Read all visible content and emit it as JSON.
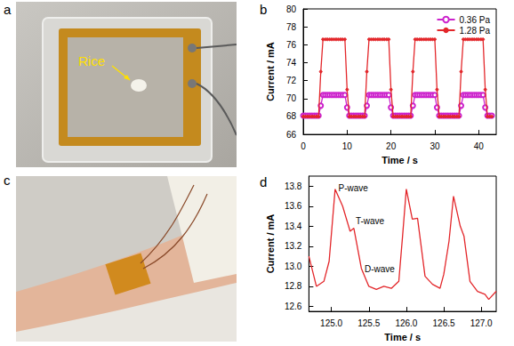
{
  "panel_labels": [
    "a",
    "b",
    "c",
    "d"
  ],
  "photo_annotation": "Rice",
  "chart_data": [
    {
      "type": "line",
      "xlabel": "Time / s",
      "ylabel": "Current / mA",
      "x": [
        0,
        0.5,
        1,
        1.5,
        2,
        2.5,
        3,
        3.5,
        4,
        4.5,
        5,
        5.5,
        6,
        6.5,
        7,
        7.5,
        8,
        8.5,
        9,
        9.5,
        10,
        10.5,
        11,
        11.5,
        12,
        12.5,
        13,
        13.5,
        14,
        14.5,
        15,
        15.5,
        16,
        16.5,
        17,
        17.5,
        18,
        18.5,
        19,
        19.5,
        20,
        20.5,
        21,
        21.5,
        22,
        22.5,
        23,
        23.5,
        24,
        24.5,
        25,
        25.5,
        26,
        26.5,
        27,
        27.5,
        28,
        28.5,
        29,
        29.5,
        30,
        30.5,
        31,
        31.5,
        32,
        32.5,
        33,
        33.5,
        34,
        34.5,
        35,
        35.5,
        36,
        36.5,
        37,
        37.5,
        38,
        38.5,
        39,
        39.5,
        40,
        40.5,
        41,
        41.5,
        42,
        42.5,
        43
      ],
      "series": [
        {
          "name": "0.36 Pa",
          "color": "#cc22cc",
          "marker": "open_circle",
          "values": [
            68.1,
            68.1,
            68.1,
            68.1,
            68.1,
            68.1,
            68.1,
            68.1,
            69.2,
            70.4,
            70.4,
            70.4,
            70.4,
            70.4,
            70.4,
            70.4,
            70.4,
            70.4,
            70.4,
            70.4,
            69.0,
            68.1,
            68.1,
            68.1,
            68.1,
            68.1,
            68.1,
            68.1,
            68.1,
            69.2,
            70.4,
            70.4,
            70.4,
            70.4,
            70.4,
            70.4,
            70.4,
            70.4,
            70.4,
            70.4,
            69.0,
            68.1,
            68.1,
            68.1,
            68.1,
            68.1,
            68.1,
            68.1,
            68.1,
            68.1,
            69.2,
            70.4,
            70.4,
            70.4,
            70.4,
            70.4,
            70.4,
            70.4,
            70.4,
            70.4,
            70.4,
            69.0,
            68.1,
            68.1,
            68.1,
            68.1,
            68.1,
            68.1,
            68.1,
            68.1,
            68.1,
            68.1,
            69.2,
            70.4,
            70.4,
            70.4,
            70.4,
            70.4,
            70.4,
            70.4,
            70.4,
            70.4,
            70.4,
            69.0,
            68.1,
            68.1,
            68.1
          ]
        },
        {
          "name": "1.28 Pa",
          "color": "#e3262a",
          "marker": "circle",
          "values": [
            68,
            68,
            68,
            68,
            68,
            68,
            68,
            68,
            73,
            76.6,
            76.6,
            76.6,
            76.6,
            76.6,
            76.6,
            76.6,
            76.6,
            76.6,
            76.6,
            76.6,
            71,
            68,
            68,
            68,
            68,
            68,
            68,
            68,
            68,
            73,
            76.6,
            76.6,
            76.6,
            76.6,
            76.6,
            76.6,
            76.6,
            76.6,
            76.6,
            76.6,
            71,
            68,
            68,
            68,
            68,
            68,
            68,
            68,
            68,
            68,
            73,
            76.6,
            76.6,
            76.6,
            76.6,
            76.6,
            76.6,
            76.6,
            76.6,
            76.6,
            76.6,
            71,
            68,
            68,
            68,
            68,
            68,
            68,
            68,
            68,
            68,
            68,
            73,
            76.6,
            76.6,
            76.6,
            76.6,
            76.6,
            76.6,
            76.6,
            76.6,
            76.6,
            76.6,
            71,
            68,
            68,
            68
          ]
        }
      ],
      "xlim": [
        0,
        44
      ],
      "xticks": [
        0,
        10,
        20,
        30,
        40
      ],
      "ylim": [
        66,
        80
      ],
      "yticks": [
        66,
        68,
        70,
        72,
        74,
        76,
        78,
        80
      ],
      "grid": false,
      "legend": "upper right"
    },
    {
      "type": "line",
      "xlabel": "Time / s",
      "ylabel": "Current / mA",
      "x": [
        124.7,
        124.8,
        124.9,
        124.97,
        125.05,
        125.15,
        125.25,
        125.3,
        125.4,
        125.5,
        125.6,
        125.7,
        125.8,
        125.9,
        125.95,
        126.0,
        126.08,
        126.15,
        126.25,
        126.35,
        126.45,
        126.5,
        126.57,
        126.63,
        126.72,
        126.77,
        126.85,
        126.95,
        127.05,
        127.1,
        127.2
      ],
      "series": [
        {
          "color": "#e3262a",
          "marker": "none",
          "values": [
            13.1,
            12.8,
            12.85,
            13.05,
            13.77,
            13.6,
            13.35,
            13.38,
            12.98,
            12.8,
            12.77,
            12.8,
            12.78,
            12.85,
            13.3,
            13.77,
            13.47,
            13.48,
            12.9,
            12.82,
            12.78,
            12.92,
            13.25,
            13.7,
            13.4,
            13.3,
            12.85,
            12.75,
            12.72,
            12.67,
            12.75
          ]
        }
      ],
      "annotations": [
        {
          "text": "P-wave",
          "x": 125.07,
          "y": 13.78
        },
        {
          "text": "T-wave",
          "x": 125.3,
          "y": 13.45
        },
        {
          "text": "D-wave",
          "x": 125.42,
          "y": 12.97
        }
      ],
      "xlim": [
        124.7,
        127.2
      ],
      "xticks": [
        {
          "value": 125,
          "label": "125.0"
        },
        125.5,
        {
          "value": 126,
          "label": "126.0"
        },
        126.5,
        {
          "value": 127,
          "label": "127.0"
        }
      ],
      "ylim": [
        12.55,
        13.9
      ],
      "yticks": [
        12.6,
        12.8,
        {
          "value": 13,
          "label": "13.0"
        },
        13.2,
        13.4,
        13.6,
        13.8
      ],
      "grid": false
    }
  ]
}
